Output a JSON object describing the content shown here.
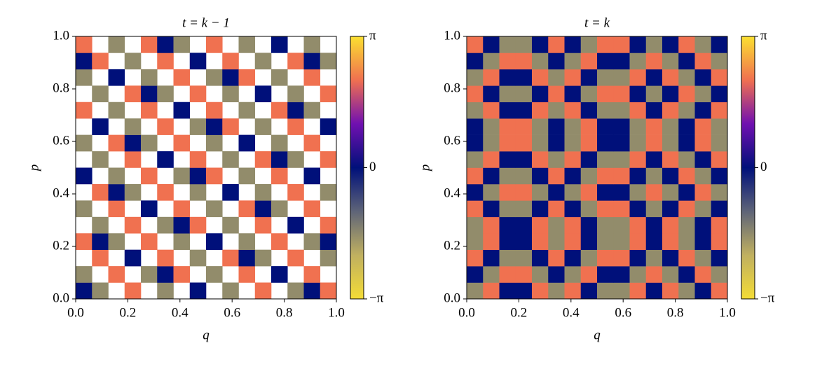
{
  "chart_data": [
    {
      "type": "heatmap",
      "title": "t = k − 1",
      "xlabel": "q",
      "ylabel": "p",
      "xlim": [
        0,
        1
      ],
      "ylim": [
        0,
        1
      ],
      "xticks": [
        {
          "value": 0,
          "label": "0.0"
        },
        0.2,
        0.4,
        0.6,
        0.8,
        {
          "value": 1,
          "label": "1.0"
        }
      ],
      "yticks": [
        {
          "value": 0,
          "label": "0.0"
        },
        0.2,
        0.4,
        0.6,
        0.8,
        {
          "value": 1,
          "label": "1.0"
        }
      ],
      "clim": [
        -3.14159,
        3.14159
      ],
      "cbar_ticks": [
        {
          "value": -3.14159,
          "label": "−π"
        },
        0,
        {
          "value": 3.14159,
          "label": "π"
        }
      ],
      "colormap": [
        "#f4dc36",
        "#c0b060",
        "#5e6478",
        "#00107a",
        "#7010b0",
        "#f07050",
        "#fbe030"
      ],
      "z": [
        [
          0,
          -1.6,
          null,
          2.1,
          null,
          -1.6,
          null,
          0,
          null,
          -1.6,
          null,
          2.1,
          null,
          -1.6,
          0,
          2.1
        ],
        [
          -1.6,
          null,
          2.1,
          null,
          -1.6,
          0,
          2.1,
          null,
          -1.6,
          null,
          2.1,
          null,
          0,
          null,
          2.1,
          null
        ],
        [
          null,
          2.1,
          null,
          0,
          null,
          2.1,
          null,
          -1.6,
          null,
          2.1,
          0,
          -1.6,
          null,
          2.1,
          null,
          -1.6
        ],
        [
          2.1,
          0,
          -1.6,
          null,
          2.1,
          null,
          -1.6,
          null,
          0,
          null,
          -1.6,
          null,
          2.1,
          null,
          -1.6,
          0
        ],
        [
          null,
          -1.6,
          null,
          2.1,
          null,
          -1.6,
          0,
          2.1,
          null,
          -1.6,
          null,
          2.1,
          null,
          0,
          null,
          2.1
        ],
        [
          -1.6,
          null,
          2.1,
          null,
          0,
          null,
          2.1,
          null,
          -1.6,
          null,
          2.1,
          0,
          -1.6,
          null,
          2.1,
          null
        ],
        [
          null,
          2.1,
          0,
          -1.6,
          null,
          2.1,
          null,
          -1.6,
          null,
          0,
          null,
          -1.6,
          null,
          2.1,
          null,
          -1.6
        ],
        [
          0,
          null,
          -1.6,
          null,
          2.1,
          null,
          -1.6,
          0,
          2.1,
          null,
          -1.6,
          null,
          2.1,
          null,
          0,
          null
        ],
        [
          null,
          -1.6,
          null,
          2.1,
          null,
          0,
          null,
          2.1,
          null,
          -1.6,
          null,
          2.1,
          0,
          -1.6,
          null,
          2.1
        ],
        [
          -1.6,
          null,
          2.1,
          0,
          -1.6,
          null,
          2.1,
          null,
          -1.6,
          null,
          0,
          null,
          -1.6,
          null,
          2.1,
          null
        ],
        [
          null,
          0,
          null,
          -1.6,
          null,
          2.1,
          null,
          -1.6,
          0,
          2.1,
          null,
          -1.6,
          null,
          2.1,
          null,
          0
        ],
        [
          2.1,
          null,
          -1.6,
          null,
          2.1,
          null,
          0,
          null,
          2.1,
          null,
          -1.6,
          null,
          2.1,
          0,
          -1.6,
          null
        ],
        [
          null,
          -1.6,
          null,
          2.1,
          0,
          -1.6,
          null,
          2.1,
          null,
          -1.6,
          null,
          0,
          null,
          -1.6,
          null,
          2.1
        ],
        [
          -1.6,
          null,
          0,
          null,
          -1.6,
          null,
          2.1,
          null,
          -1.6,
          0,
          2.1,
          null,
          -1.6,
          null,
          2.1,
          null
        ],
        [
          0,
          2.1,
          null,
          -1.6,
          null,
          2.1,
          null,
          0,
          null,
          2.1,
          null,
          -1.6,
          null,
          2.1,
          0,
          -1.6
        ],
        [
          2.1,
          null,
          -1.6,
          null,
          2.1,
          0,
          -1.6,
          null,
          2.1,
          null,
          -1.6,
          null,
          0,
          null,
          -1.6,
          null
        ]
      ]
    },
    {
      "type": "heatmap",
      "title": "t = k",
      "xlabel": "q",
      "ylabel": "p",
      "xlim": [
        0,
        1
      ],
      "ylim": [
        0,
        1
      ],
      "xticks": [
        {
          "value": 0,
          "label": "0.0"
        },
        0.2,
        0.4,
        0.6,
        0.8,
        {
          "value": 1,
          "label": "1.0"
        }
      ],
      "yticks": [
        {
          "value": 0,
          "label": "0.0"
        },
        0.2,
        0.4,
        0.6,
        0.8,
        {
          "value": 1,
          "label": "1.0"
        }
      ],
      "clim": [
        -3.14159,
        3.14159
      ],
      "cbar_ticks": [
        {
          "value": -3.14159,
          "label": "−π"
        },
        0,
        {
          "value": 3.14159,
          "label": "π"
        }
      ],
      "colormap": [
        "#f4dc36",
        "#c0b060",
        "#5e6478",
        "#00107a",
        "#7010b0",
        "#f07050",
        "#fbe030"
      ],
      "z": [
        [
          -1.6,
          2.1,
          0,
          0,
          2.1,
          -1.6,
          2.1,
          0,
          -1.6,
          -1.6,
          2.1,
          0,
          2.1,
          -1.6,
          0,
          2.1
        ],
        [
          0,
          -1.6,
          2.1,
          2.1,
          -1.6,
          0,
          -1.6,
          2.1,
          0,
          0,
          -1.6,
          2.1,
          -1.6,
          0,
          2.1,
          -1.6
        ],
        [
          2.1,
          0,
          -1.6,
          -1.6,
          0,
          2.1,
          0,
          -1.6,
          2.1,
          2.1,
          0,
          -1.6,
          0,
          2.1,
          -1.6,
          0
        ],
        [
          -1.6,
          2.1,
          0,
          0,
          2.1,
          -1.6,
          2.1,
          0,
          -1.6,
          -1.6,
          2.1,
          0,
          2.1,
          -1.6,
          0,
          2.1
        ],
        [
          -1.6,
          2.1,
          0,
          0,
          2.1,
          -1.6,
          2.1,
          0,
          -1.6,
          -1.6,
          2.1,
          0,
          2.1,
          -1.6,
          0,
          2.1
        ],
        [
          2.1,
          0,
          -1.6,
          -1.6,
          0,
          2.1,
          0,
          -1.6,
          2.1,
          2.1,
          0,
          -1.6,
          0,
          2.1,
          -1.6,
          0
        ],
        [
          0,
          -1.6,
          2.1,
          2.1,
          -1.6,
          0,
          -1.6,
          2.1,
          0,
          0,
          -1.6,
          2.1,
          -1.6,
          0,
          2.1,
          -1.6
        ],
        [
          2.1,
          0,
          -1.6,
          -1.6,
          0,
          2.1,
          0,
          -1.6,
          2.1,
          2.1,
          0,
          -1.6,
          0,
          2.1,
          -1.6,
          0
        ],
        [
          -1.6,
          2.1,
          0,
          0,
          2.1,
          -1.6,
          2.1,
          0,
          -1.6,
          -1.6,
          2.1,
          0,
          2.1,
          -1.6,
          0,
          2.1
        ],
        [
          0,
          -1.6,
          2.1,
          2.1,
          -1.6,
          0,
          -1.6,
          2.1,
          0,
          0,
          -1.6,
          2.1,
          -1.6,
          0,
          2.1,
          -1.6
        ],
        [
          0,
          -1.6,
          2.1,
          2.1,
          -1.6,
          0,
          -1.6,
          2.1,
          0,
          0,
          -1.6,
          2.1,
          -1.6,
          0,
          2.1,
          -1.6
        ],
        [
          -1.6,
          2.1,
          0,
          0,
          2.1,
          -1.6,
          2.1,
          0,
          -1.6,
          -1.6,
          2.1,
          0,
          2.1,
          -1.6,
          0,
          2.1
        ],
        [
          2.1,
          0,
          -1.6,
          -1.6,
          0,
          2.1,
          0,
          -1.6,
          2.1,
          2.1,
          0,
          -1.6,
          0,
          2.1,
          -1.6,
          0
        ],
        [
          -1.6,
          2.1,
          0,
          0,
          2.1,
          -1.6,
          2.1,
          0,
          -1.6,
          -1.6,
          2.1,
          0,
          2.1,
          -1.6,
          0,
          2.1
        ],
        [
          0,
          -1.6,
          2.1,
          2.1,
          -1.6,
          0,
          -1.6,
          2.1,
          0,
          0,
          -1.6,
          2.1,
          -1.6,
          0,
          2.1,
          -1.6
        ],
        [
          2.1,
          0,
          -1.6,
          -1.6,
          0,
          2.1,
          0,
          -1.6,
          2.1,
          2.1,
          0,
          -1.6,
          0,
          2.1,
          -1.6,
          0
        ]
      ]
    }
  ]
}
